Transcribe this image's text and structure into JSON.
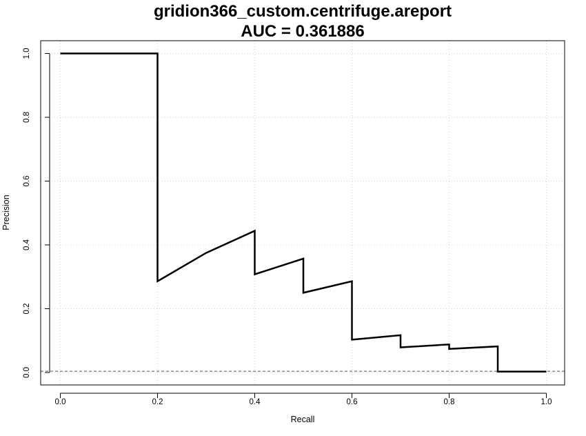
{
  "chart_data": {
    "type": "line",
    "title": "gridion366_custom.centrifuge.areport",
    "subtitle": "AUC = 0.361886",
    "xlabel": "Recall",
    "ylabel": "Precision",
    "xlim": [
      0,
      1
    ],
    "ylim": [
      0,
      1
    ],
    "x_ticks": [
      "0.0",
      "0.2",
      "0.4",
      "0.6",
      "0.8",
      "1.0"
    ],
    "y_ticks": [
      "0.0",
      "0.2",
      "0.4",
      "0.6",
      "0.8",
      "1.0"
    ],
    "grid": true,
    "baseline": 0.004,
    "series": [
      {
        "x": [
          0.0,
          0.2,
          0.2,
          0.3,
          0.4,
          0.4,
          0.5,
          0.5,
          0.6,
          0.6,
          0.7,
          0.7,
          0.8,
          0.8,
          0.9,
          0.9,
          1.0
        ],
        "y": [
          1.0,
          1.0,
          0.286,
          0.375,
          0.444,
          0.308,
          0.357,
          0.25,
          0.286,
          0.103,
          0.117,
          0.079,
          0.088,
          0.074,
          0.082,
          0.003,
          0.003
        ]
      }
    ]
  },
  "colors": {
    "line": "#000000",
    "grid": "#d3d3d3",
    "baseline": "#555555",
    "frame": "#000000"
  }
}
